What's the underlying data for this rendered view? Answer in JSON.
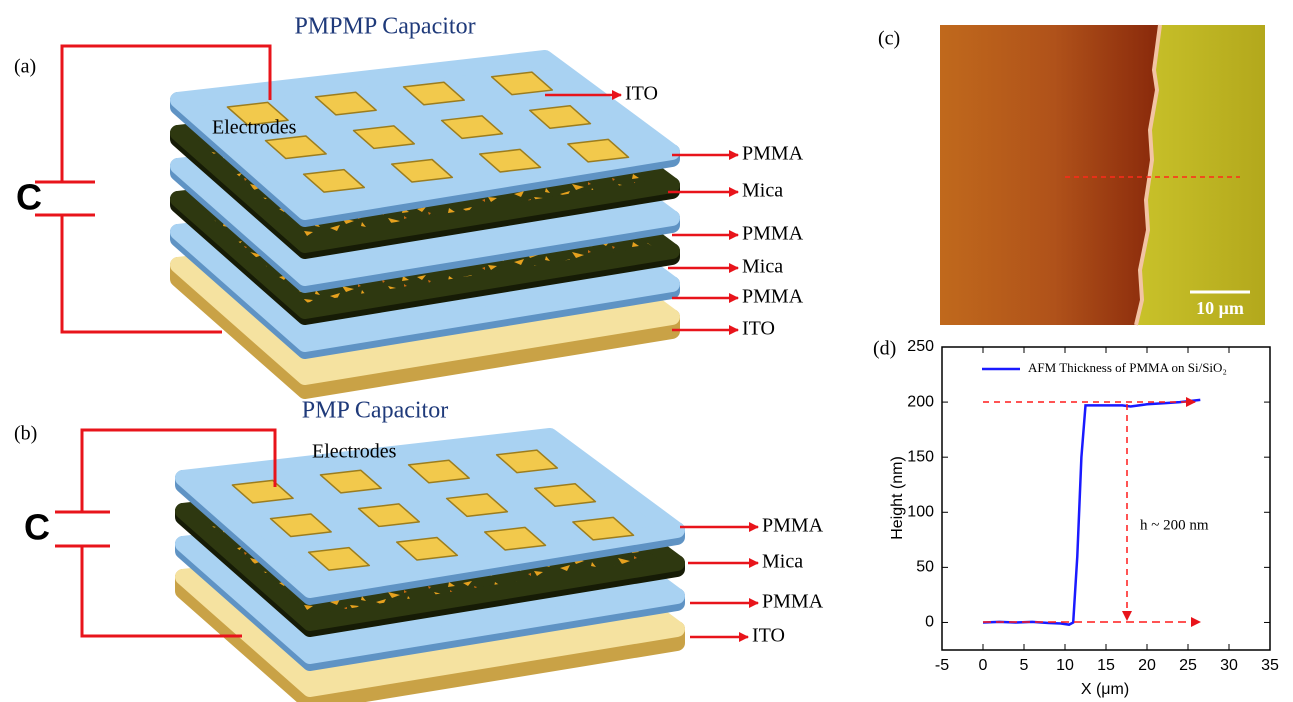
{
  "panel_a": {
    "label": "(a)",
    "title": "PMPMP Capacitor",
    "electrodes": "Electrodes",
    "capacitor": "C",
    "layer_labels": [
      "ITO",
      "PMMA",
      "Mica",
      "PMMA",
      "Mica",
      "PMMA",
      "ITO"
    ]
  },
  "panel_b": {
    "label": "(b)",
    "title": "PMP Capacitor",
    "electrodes": "Electrodes",
    "capacitor": "C",
    "layer_labels": [
      "PMMA",
      "Mica",
      "PMMA",
      "ITO"
    ]
  },
  "panel_c": {
    "label": "(c)",
    "scale_bar": "10 μm"
  },
  "chart_data": {
    "type": "line",
    "panel_label": "(d)",
    "xlabel": "X (μm)",
    "ylabel": "Height (nm)",
    "annotation": "h ~ 200 nm",
    "x": [
      0,
      2,
      4,
      6,
      8,
      9.5,
      10.5,
      11,
      11.5,
      12,
      12.5,
      13,
      15,
      17,
      18,
      20,
      22,
      24,
      26.5
    ],
    "series": [
      {
        "name": "AFM Thickness of PMMA on Si/SiO₂",
        "color": "#1a1aff",
        "values": [
          0,
          0.5,
          0,
          0.5,
          -0.5,
          -1,
          -2,
          0,
          60,
          150,
          197,
          197,
          197,
          197,
          196,
          198,
          199,
          200,
          202
        ]
      }
    ],
    "xlim": [
      -5,
      35
    ],
    "ylim": [
      -25,
      250
    ],
    "xticks": [
      -5,
      0,
      5,
      10,
      15,
      20,
      25,
      30,
      35
    ],
    "yticks": [
      0,
      50,
      100,
      150,
      200,
      250
    ]
  }
}
